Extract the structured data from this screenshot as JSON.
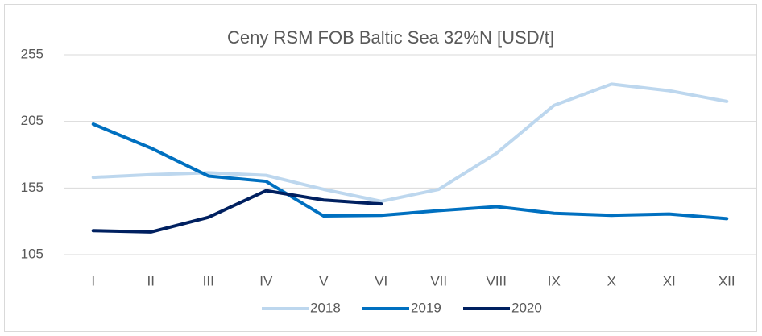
{
  "chart_data": {
    "type": "line",
    "title": "Ceny RSM FOB Baltic Sea 32%N [USD/t]",
    "categories": [
      "I",
      "II",
      "III",
      "IV",
      "V",
      "VI",
      "VII",
      "VIII",
      "IX",
      "X",
      "XI",
      "XII"
    ],
    "series": [
      {
        "name": "2018",
        "color": "#bdd7ee",
        "values": [
          163,
          165,
          166.5,
          164.5,
          154,
          145,
          154,
          181,
          217,
          233,
          228,
          220
        ]
      },
      {
        "name": "2019",
        "color": "#0070c0",
        "values": [
          203,
          185,
          164,
          160,
          134,
          134.5,
          138,
          141,
          136,
          134.5,
          135.5,
          132
        ]
      },
      {
        "name": "2020",
        "color": "#002060",
        "values": [
          123,
          122,
          133,
          153,
          146,
          143,
          null,
          null,
          null,
          null,
          null,
          null
        ]
      }
    ],
    "ylim": [
      105,
      255
    ],
    "yticks": [
      105,
      155,
      205,
      255
    ],
    "grid": true,
    "legend": "bottom"
  }
}
